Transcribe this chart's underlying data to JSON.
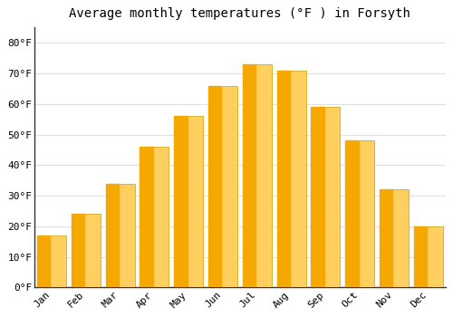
{
  "title": "Average monthly temperatures (°F ) in Forsyth",
  "months": [
    "Jan",
    "Feb",
    "Mar",
    "Apr",
    "May",
    "Jun",
    "Jul",
    "Aug",
    "Sep",
    "Oct",
    "Nov",
    "Dec"
  ],
  "values": [
    17,
    24,
    34,
    46,
    56,
    66,
    73,
    71,
    59,
    48,
    32,
    20
  ],
  "bar_color_dark": "#F5A800",
  "bar_color_light": "#FFD060",
  "bar_edge_color": "#C8A000",
  "ylim": [
    0,
    85
  ],
  "yticks": [
    0,
    10,
    20,
    30,
    40,
    50,
    60,
    70,
    80
  ],
  "ytick_labels": [
    "0°F",
    "10°F",
    "20°F",
    "30°F",
    "40°F",
    "50°F",
    "60°F",
    "70°F",
    "80°F"
  ],
  "background_color": "#ffffff",
  "plot_bg_color": "#ffffff",
  "grid_color": "#e0e0e0",
  "title_fontsize": 10,
  "tick_fontsize": 8,
  "font_family": "monospace",
  "bar_width": 0.85
}
